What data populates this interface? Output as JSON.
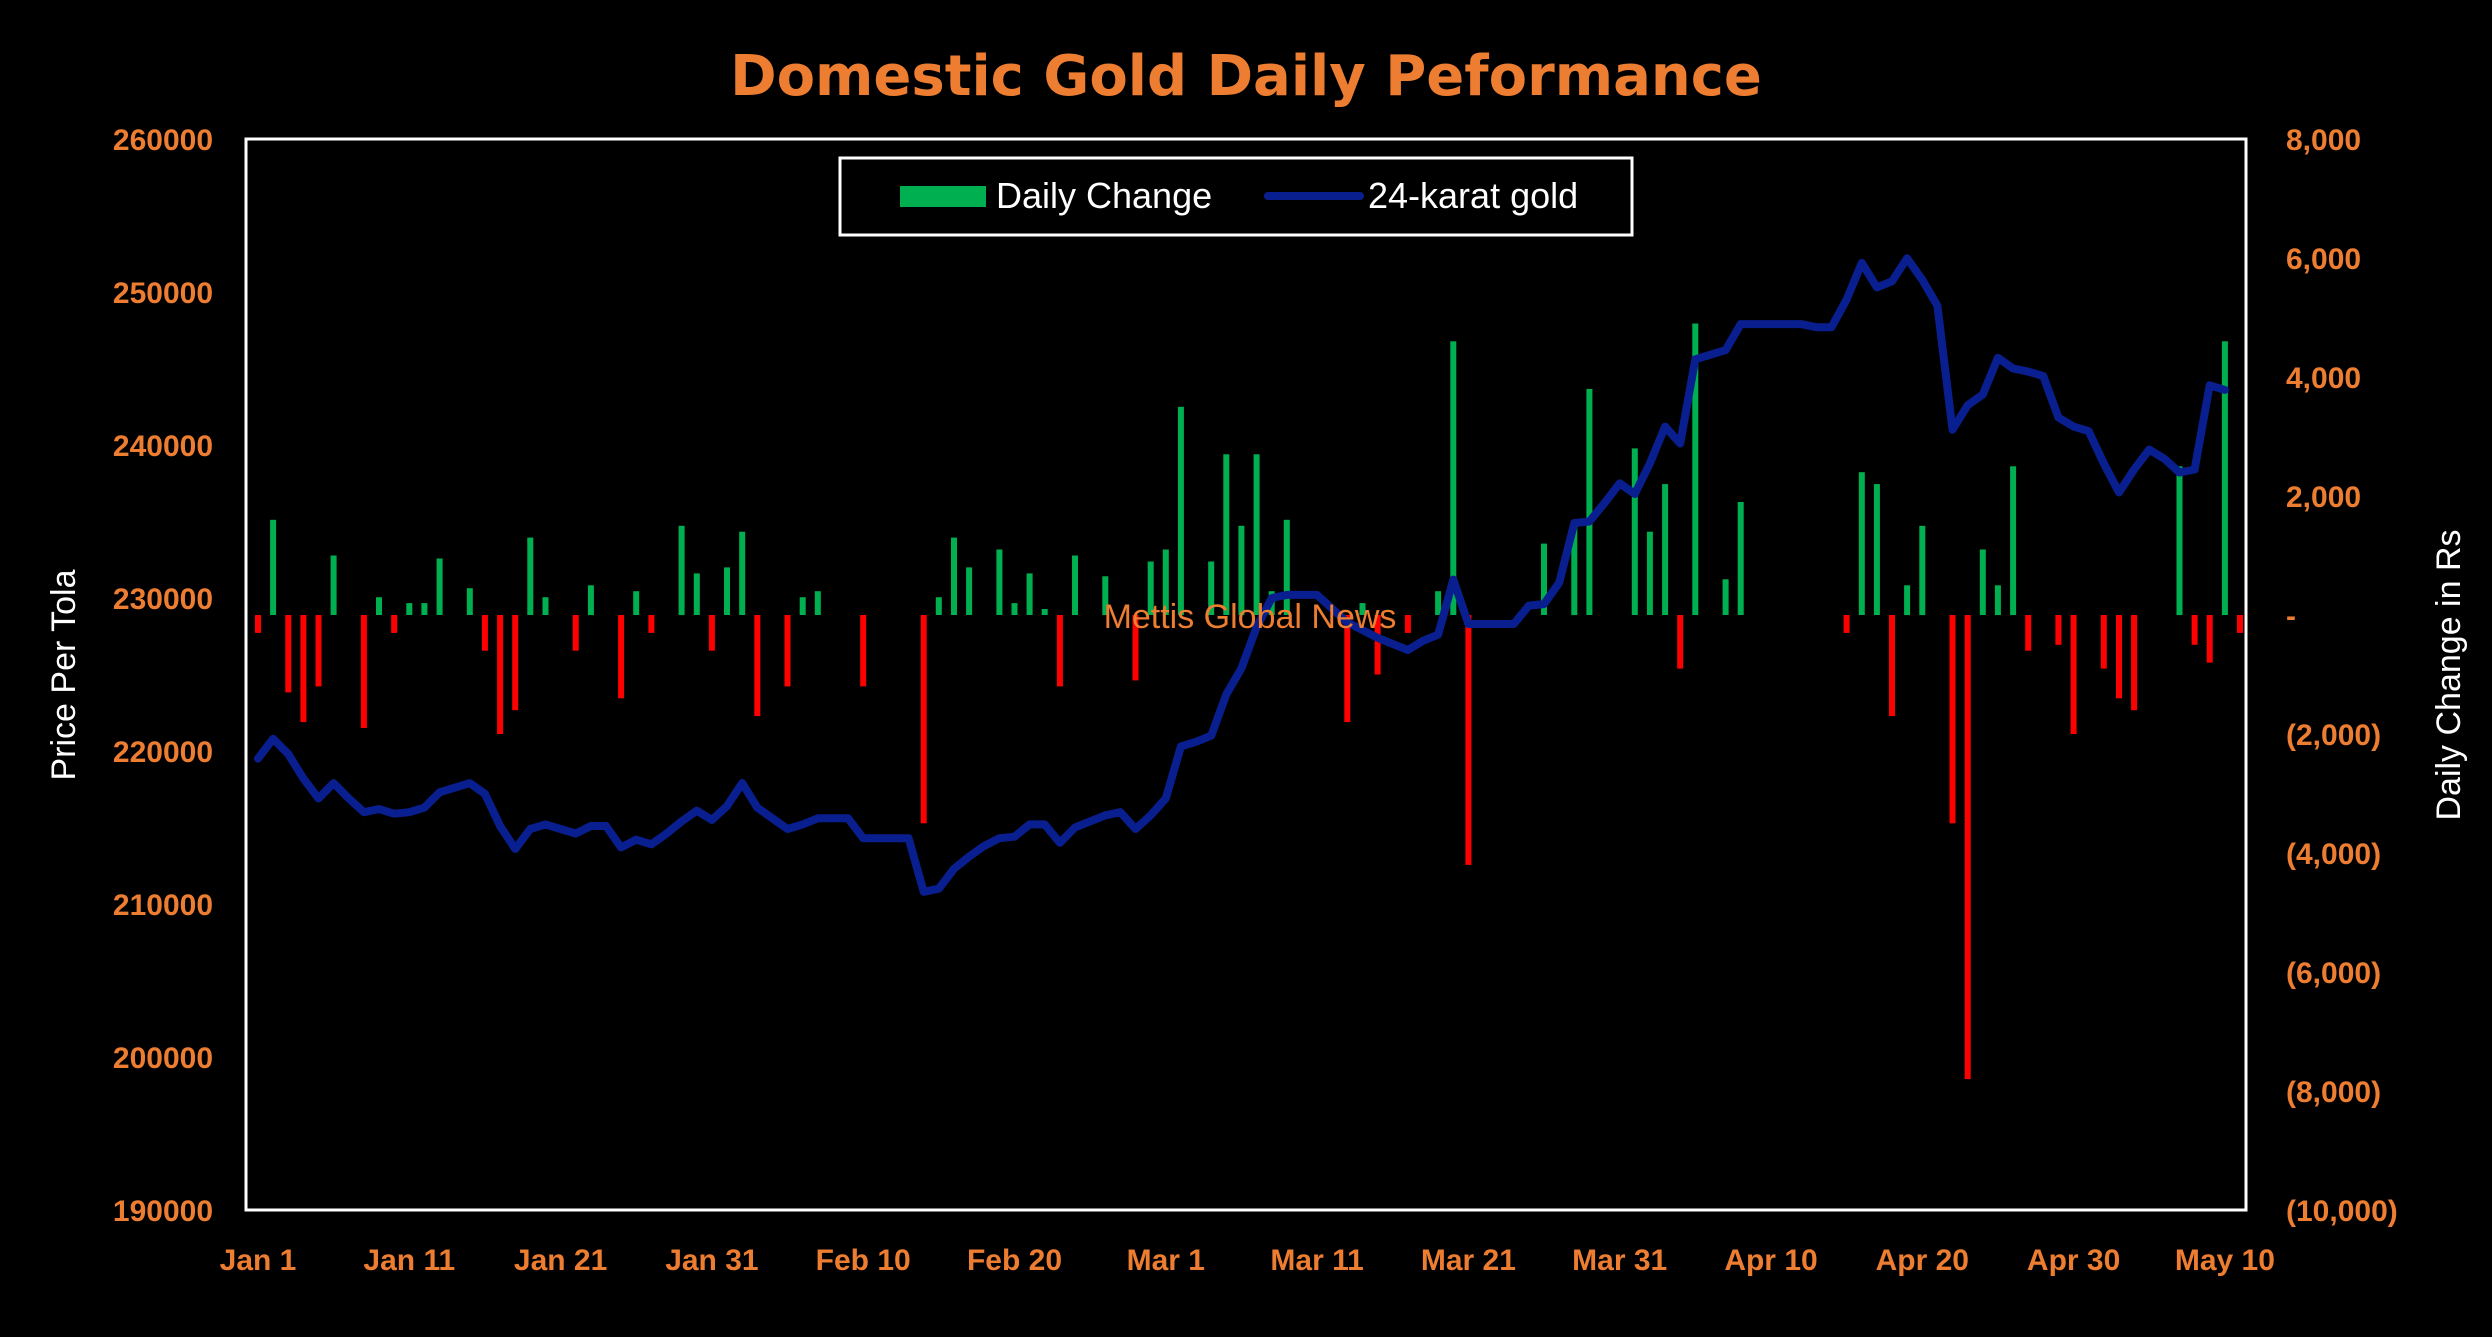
{
  "chart_data": {
    "type": "bar+line",
    "title": "Domestic Gold Daily Peformance",
    "watermark": "Mettis Global News",
    "ylabel_left": "Price Per Tola",
    "ylabel_right": "Daily Change in Rs",
    "ylim_left": [
      190000,
      260000
    ],
    "ylim_right": [
      -10000,
      8000
    ],
    "yticks_left": [
      "260000",
      "250000",
      "240000",
      "230000",
      "220000",
      "210000",
      "200000",
      "190000"
    ],
    "yticks_right": [
      "8,000",
      "6,000",
      "4,000",
      "2,000",
      "-",
      "(2,000)",
      "(4,000)",
      "(6,000)",
      "(8,000)",
      "(10,000)"
    ],
    "xticks": [
      "Jan 1",
      "Jan 11",
      "Jan 21",
      "Jan 31",
      "Feb 10",
      "Feb 20",
      "Mar 1",
      "Mar 11",
      "Mar 21",
      "Mar 31",
      "Apr 10",
      "Apr 20",
      "Apr 30",
      "May 10"
    ],
    "x_range_days": [
      0,
      131
    ],
    "colors": {
      "positive": "#00b050",
      "negative": "#ff0000",
      "line": "#0a1f8f",
      "title": "#ed7d31",
      "tick": "#ed7d31",
      "axis_title": "#ffffff"
    },
    "legend": {
      "items": [
        "Daily Change",
        "24-karat gold"
      ],
      "placement": "top-center"
    },
    "series": [
      {
        "name": "24-karat gold",
        "kind": "line",
        "points": [
          [
            0,
            219500
          ],
          [
            1,
            220800
          ],
          [
            2,
            219800
          ],
          [
            3,
            218200
          ],
          [
            4,
            216900
          ],
          [
            5,
            217900
          ],
          [
            6,
            216900
          ],
          [
            7,
            216000
          ],
          [
            8,
            216200
          ],
          [
            9,
            215900
          ],
          [
            10,
            216000
          ],
          [
            11,
            216300
          ],
          [
            12,
            217300
          ],
          [
            13,
            217600
          ],
          [
            14,
            217900
          ],
          [
            15,
            217200
          ],
          [
            16,
            215100
          ],
          [
            17,
            213600
          ],
          [
            18,
            214900
          ],
          [
            19,
            215200
          ],
          [
            20,
            214900
          ],
          [
            21,
            214600
          ],
          [
            22,
            215100
          ],
          [
            23,
            215100
          ],
          [
            24,
            213700
          ],
          [
            25,
            214200
          ],
          [
            26,
            213900
          ],
          [
            27,
            214600
          ],
          [
            28,
            215400
          ],
          [
            29,
            216100
          ],
          [
            30,
            215500
          ],
          [
            31,
            216400
          ],
          [
            32,
            217900
          ],
          [
            33,
            216300
          ],
          [
            34,
            215600
          ],
          [
            35,
            214900
          ],
          [
            36,
            215200
          ],
          [
            37,
            215600
          ],
          [
            38,
            215600
          ],
          [
            39,
            215600
          ],
          [
            40,
            214300
          ],
          [
            41,
            214300
          ],
          [
            42,
            214300
          ],
          [
            43,
            214300
          ],
          [
            44,
            210800
          ],
          [
            45,
            211000
          ],
          [
            46,
            212300
          ],
          [
            47,
            213100
          ],
          [
            48,
            213800
          ],
          [
            49,
            214300
          ],
          [
            50,
            214400
          ],
          [
            51,
            215200
          ],
          [
            52,
            215200
          ],
          [
            53,
            214000
          ],
          [
            54,
            215000
          ],
          [
            55,
            215400
          ],
          [
            56,
            215800
          ],
          [
            57,
            216000
          ],
          [
            58,
            214900
          ],
          [
            59,
            215800
          ],
          [
            60,
            216900
          ],
          [
            61,
            220300
          ],
          [
            62,
            220600
          ],
          [
            63,
            221000
          ],
          [
            64,
            223700
          ],
          [
            65,
            225400
          ],
          [
            66,
            228100
          ],
          [
            67,
            230000
          ],
          [
            68,
            230200
          ],
          [
            69,
            230200
          ],
          [
            70,
            230200
          ],
          [
            71,
            229300
          ],
          [
            72,
            228400
          ],
          [
            73,
            227900
          ],
          [
            74,
            227400
          ],
          [
            75,
            227000
          ],
          [
            76,
            226600
          ],
          [
            77,
            227200
          ],
          [
            78,
            227600
          ],
          [
            79,
            231200
          ],
          [
            80,
            228300
          ],
          [
            81,
            228300
          ],
          [
            82,
            228300
          ],
          [
            83,
            228300
          ],
          [
            84,
            229500
          ],
          [
            85,
            229600
          ],
          [
            86,
            231000
          ],
          [
            87,
            234900
          ],
          [
            88,
            235000
          ],
          [
            89,
            236200
          ],
          [
            90,
            237500
          ],
          [
            91,
            236800
          ],
          [
            92,
            238800
          ],
          [
            93,
            241200
          ],
          [
            94,
            240100
          ],
          [
            95,
            245600
          ],
          [
            96,
            245900
          ],
          [
            97,
            246200
          ],
          [
            98,
            247900
          ],
          [
            99,
            247900
          ],
          [
            100,
            247900
          ],
          [
            101,
            247900
          ],
          [
            102,
            247900
          ],
          [
            103,
            247700
          ],
          [
            104,
            247700
          ],
          [
            105,
            249500
          ],
          [
            106,
            251900
          ],
          [
            107,
            250300
          ],
          [
            108,
            250700
          ],
          [
            109,
            252200
          ],
          [
            110,
            250800
          ],
          [
            111,
            249100
          ],
          [
            112,
            241000
          ],
          [
            113,
            242600
          ],
          [
            114,
            243300
          ],
          [
            115,
            245700
          ],
          [
            116,
            245000
          ],
          [
            117,
            244800
          ],
          [
            118,
            244500
          ],
          [
            119,
            241800
          ],
          [
            120,
            241200
          ],
          [
            121,
            240900
          ],
          [
            122,
            238800
          ],
          [
            123,
            236900
          ],
          [
            124,
            238400
          ],
          [
            125,
            239700
          ],
          [
            126,
            239100
          ],
          [
            127,
            238200
          ],
          [
            128,
            238400
          ],
          [
            129,
            243900
          ],
          [
            130,
            243600
          ]
        ]
      },
      {
        "name": "Daily Change",
        "kind": "bar",
        "points": [
          [
            0,
            -300
          ],
          [
            1,
            1600
          ],
          [
            2,
            -1300
          ],
          [
            3,
            -1800
          ],
          [
            4,
            -1200
          ],
          [
            5,
            1000
          ],
          [
            7,
            -1900
          ],
          [
            8,
            300
          ],
          [
            9,
            -300
          ],
          [
            10,
            200
          ],
          [
            11,
            200
          ],
          [
            12,
            950
          ],
          [
            14,
            450
          ],
          [
            15,
            -600
          ],
          [
            16,
            -2000
          ],
          [
            17,
            -1600
          ],
          [
            18,
            1300
          ],
          [
            19,
            300
          ],
          [
            21,
            -600
          ],
          [
            22,
            500
          ],
          [
            24,
            -1400
          ],
          [
            25,
            400
          ],
          [
            26,
            -300
          ],
          [
            28,
            1500
          ],
          [
            29,
            700
          ],
          [
            30,
            -600
          ],
          [
            31,
            800
          ],
          [
            32,
            1400
          ],
          [
            33,
            -1700
          ],
          [
            35,
            -1200
          ],
          [
            36,
            300
          ],
          [
            37,
            400
          ],
          [
            40,
            -1200
          ],
          [
            44,
            -3500
          ],
          [
            45,
            300
          ],
          [
            46,
            1300
          ],
          [
            47,
            800
          ],
          [
            49,
            1100
          ],
          [
            50,
            200
          ],
          [
            51,
            700
          ],
          [
            52,
            100
          ],
          [
            53,
            -1200
          ],
          [
            54,
            1000
          ],
          [
            56,
            650
          ],
          [
            58,
            -1100
          ],
          [
            59,
            900
          ],
          [
            60,
            1100
          ],
          [
            61,
            3500
          ],
          [
            63,
            900
          ],
          [
            64,
            2700
          ],
          [
            65,
            1500
          ],
          [
            66,
            2700
          ],
          [
            67,
            400
          ],
          [
            68,
            1600
          ],
          [
            72,
            -1800
          ],
          [
            73,
            200
          ],
          [
            74,
            -1000
          ],
          [
            76,
            -300
          ],
          [
            78,
            400
          ],
          [
            79,
            4600
          ],
          [
            80,
            -4200
          ],
          [
            85,
            1200
          ],
          [
            87,
            1500
          ],
          [
            88,
            3800
          ],
          [
            91,
            2800
          ],
          [
            92,
            1400
          ],
          [
            93,
            2200
          ],
          [
            94,
            -900
          ],
          [
            95,
            4900
          ],
          [
            97,
            600
          ],
          [
            98,
            1900
          ],
          [
            105,
            -300
          ],
          [
            106,
            2400
          ],
          [
            107,
            2200
          ],
          [
            108,
            -1700
          ],
          [
            109,
            500
          ],
          [
            110,
            1500
          ],
          [
            112,
            -3500
          ],
          [
            113,
            -7800
          ],
          [
            114,
            1100
          ],
          [
            115,
            500
          ],
          [
            116,
            2500
          ],
          [
            117,
            -600
          ],
          [
            119,
            -500
          ],
          [
            120,
            -2000
          ],
          [
            122,
            -900
          ],
          [
            123,
            -1400
          ],
          [
            124,
            -1600
          ],
          [
            127,
            2500
          ],
          [
            128,
            -500
          ],
          [
            129,
            -800
          ],
          [
            130,
            4600
          ],
          [
            131,
            -300
          ]
        ]
      }
    ]
  }
}
